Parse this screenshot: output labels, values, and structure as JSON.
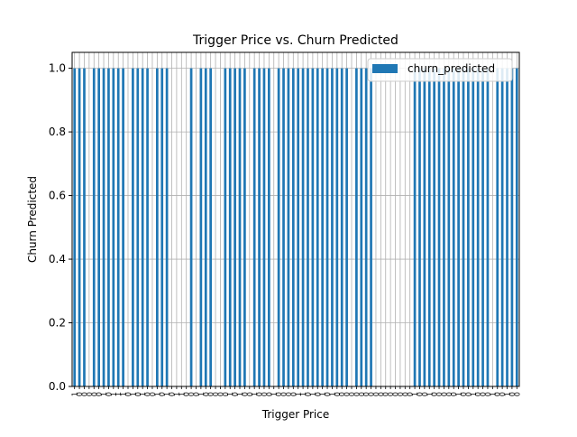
{
  "chart_data": {
    "type": "bar",
    "title": "Trigger Price vs. Churn Predicted",
    "xlabel": "Trigger Price",
    "ylabel": "Churn Predicted",
    "ylim": [
      0,
      1.05
    ],
    "yticks": [
      "0.0",
      "0.2",
      "0.4",
      "0.6",
      "0.8",
      "1.0"
    ],
    "grid": true,
    "legend_position": "top-right",
    "bar_color": "#1f77b4",
    "series": [
      {
        "name": "churn_predicted",
        "values": [
          1,
          1,
          1,
          0,
          1,
          1,
          1,
          1,
          1,
          1,
          1,
          0,
          1,
          1,
          1,
          1,
          0,
          1,
          1,
          1,
          0,
          0,
          0,
          0,
          1,
          0,
          1,
          1,
          1,
          0,
          0,
          1,
          1,
          1,
          1,
          1,
          0,
          1,
          1,
          1,
          1,
          0,
          1,
          1,
          1,
          1,
          1,
          1,
          1,
          1,
          1,
          1,
          1,
          1,
          1,
          1,
          1,
          0,
          1,
          1,
          1,
          1,
          0,
          0,
          0,
          0,
          0,
          0,
          0,
          0,
          1,
          1,
          1,
          1,
          1,
          1,
          1,
          1,
          1,
          1,
          1,
          1,
          1,
          1,
          1,
          1,
          0,
          1,
          1,
          1,
          1,
          1
        ]
      }
    ],
    "categories": [
      "1",
      "0",
      "0",
      "0",
      "0",
      "0",
      "1",
      "0",
      "1",
      "1",
      "1",
      "0",
      "1",
      "0",
      "1",
      "0",
      "0",
      "1",
      "0",
      "1",
      "0",
      "1",
      "1",
      "0",
      "0",
      "0",
      "1",
      "0",
      "0",
      "0",
      "0",
      "0",
      "1",
      "0",
      "1",
      "0",
      "0",
      "1",
      "0",
      "0",
      "0",
      "1",
      "0",
      "0",
      "0",
      "0",
      "1",
      "1",
      "0",
      "1",
      "0",
      "1",
      "0",
      "1",
      "0",
      "0",
      "0",
      "0",
      "0",
      "0",
      "0",
      "0",
      "0",
      "0",
      "0",
      "0",
      "0",
      "0",
      "0",
      "0",
      "1",
      "0",
      "0",
      "1",
      "0",
      "0",
      "0",
      "0",
      "0",
      "1",
      "0",
      "0",
      "1",
      "0",
      "0",
      "0",
      "1",
      "0",
      "0",
      "1",
      "0",
      "0"
    ]
  }
}
